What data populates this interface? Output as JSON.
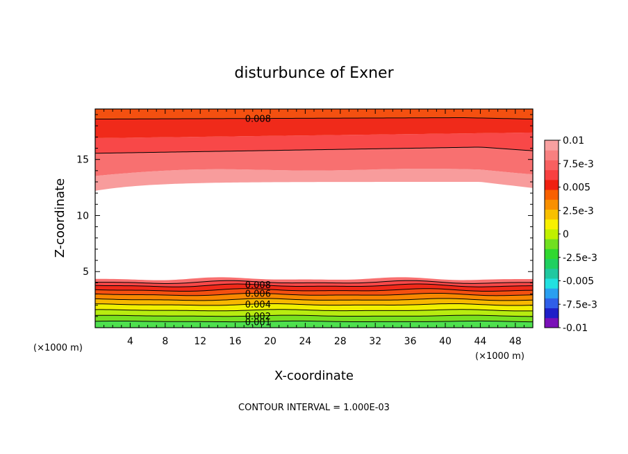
{
  "chart_data": {
    "type": "contour",
    "title": "disturbunce of Exner",
    "xlabel": "X-coordinate",
    "ylabel": "Z-coordinate",
    "x_unit": "(×1000 m)",
    "y_unit": "(×1000 m)",
    "xlim": [
      0,
      50
    ],
    "ylim": [
      0,
      19.5
    ],
    "x_ticks": [
      "4",
      "8",
      "12",
      "16",
      "20",
      "24",
      "28",
      "32",
      "36",
      "40",
      "44",
      "48"
    ],
    "y_ticks": [
      "5",
      "10",
      "15"
    ],
    "footer": "CONTOUR INTERVAL = 1.000E-03",
    "contour_interval": 0.001,
    "contour_labels": {
      "top": [
        "0.008"
      ],
      "bottom": [
        "0.008",
        "0.006",
        "0.004",
        "0.002",
        "0.001"
      ]
    },
    "colorbar": {
      "range": [
        -0.01,
        0.01
      ],
      "labels": [
        "0.01",
        "7.5e-3",
        "0.005",
        "2.5e-3",
        "0",
        "-2.5e-3",
        "-0.005",
        "-7.5e-3",
        "-0.01"
      ],
      "colors": [
        "#7a10b8",
        "#1f1fc8",
        "#2f5fe8",
        "#2a9ff0",
        "#22e0e0",
        "#20c8a0",
        "#20d060",
        "#30d830",
        "#70e020",
        "#c0f000",
        "#f8f000",
        "#f8c000",
        "#f89000",
        "#f86000",
        "#f02010",
        "#f84040",
        "#f86060",
        "#f88080",
        "#f8a0a0"
      ]
    },
    "levels": [
      0.001,
      0.002,
      0.003,
      0.004,
      0.005,
      0.006,
      0.007,
      0.008,
      0.009,
      0.01
    ]
  }
}
